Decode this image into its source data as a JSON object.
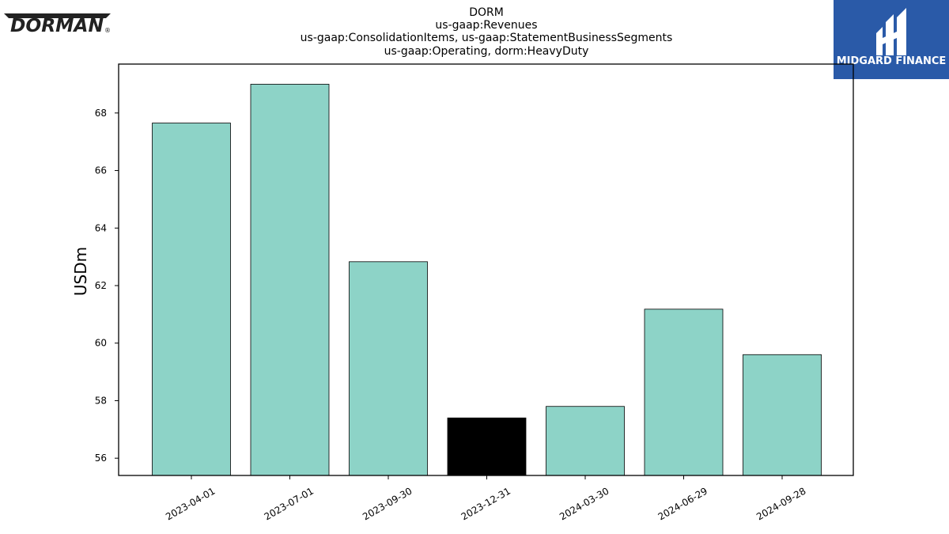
{
  "logos": {
    "left_text": "DORMAN",
    "left_registered": "®",
    "right_caption": "MIDGARD FINANCE"
  },
  "colors": {
    "bar": "#8dd3c7",
    "highlight_bar": "#000000",
    "logo_panel": "#2a5aa8"
  },
  "chart_data": {
    "type": "bar",
    "title_lines": [
      "DORM",
      "us-gaap:Revenues",
      "us-gaap:ConsolidationItems, us-gaap:StatementBusinessSegments",
      "us-gaap:Operating, dorm:HeavyDuty"
    ],
    "ylabel": "USDm",
    "xlabel": "",
    "categories": [
      "2023-04-01",
      "2023-07-01",
      "2023-09-30",
      "2023-12-31",
      "2024-03-30",
      "2024-06-29",
      "2024-09-28"
    ],
    "values": [
      67.65,
      69.0,
      62.83,
      57.4,
      57.8,
      61.18,
      59.6
    ],
    "highlight_index": 3,
    "ylim": [
      55.4,
      69.7
    ],
    "yticks": [
      56,
      58,
      60,
      62,
      64,
      66,
      68
    ],
    "grid": false
  }
}
